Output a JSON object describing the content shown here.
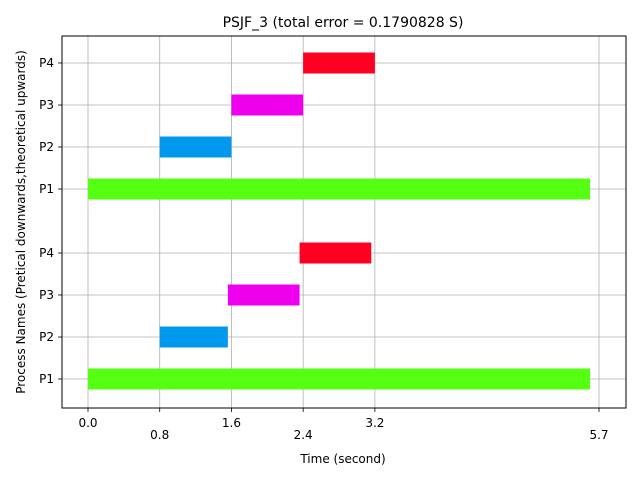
{
  "chart_data": {
    "type": "gantt",
    "title": "PSJF_3 (total error = 0.1790828 S)",
    "xlabel": "Time (second)",
    "ylabel": "Process Names (Pretical downwards,theoretical upwards)",
    "x_ticks": [
      "0.0",
      "0.8",
      "1.6",
      "2.4",
      "3.2",
      "5.7"
    ],
    "y_ticks": [
      "P1",
      "P2",
      "P3",
      "P4",
      "P1",
      "P2",
      "P3",
      "P4"
    ],
    "grid": true,
    "colors": {
      "P1": "#55ff11",
      "P2": "#0099ee",
      "P3": "#ee00ee",
      "P4": "#ff0022"
    },
    "series": [
      {
        "bars": [
          {
            "process": "P1",
            "start": 0.0,
            "end": 5.6
          },
          {
            "process": "P2",
            "start": 0.8,
            "end": 1.56
          },
          {
            "process": "P3",
            "start": 1.56,
            "end": 2.36
          },
          {
            "process": "P4",
            "start": 2.36,
            "end": 3.16
          }
        ]
      },
      {
        "bars": [
          {
            "process": "P1",
            "start": 0.0,
            "end": 5.6
          },
          {
            "process": "P2",
            "start": 0.8,
            "end": 1.6
          },
          {
            "process": "P3",
            "start": 1.6,
            "end": 2.4
          },
          {
            "process": "P4",
            "start": 2.4,
            "end": 3.2
          }
        ]
      }
    ]
  }
}
